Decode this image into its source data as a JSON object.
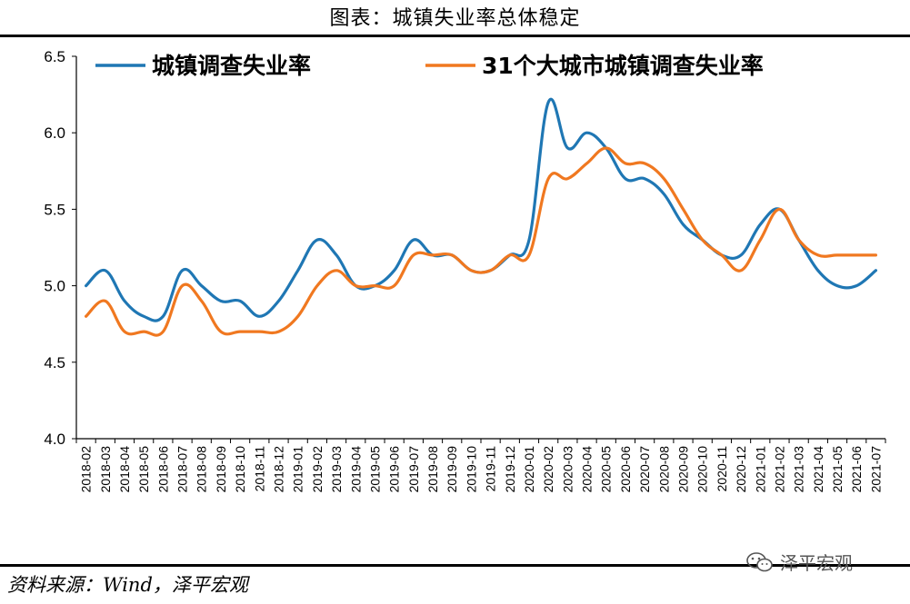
{
  "header": {
    "title": "图表：城镇失业率总体稳定"
  },
  "footer": {
    "source": "资料来源：Wind，泽平宏观",
    "watermark": "泽平宏观",
    "watermark_icon": "wechat-icon"
  },
  "colors": {
    "series1": "#1f77b4",
    "series2": "#f07820",
    "axis": "#000000"
  },
  "chart_data": {
    "type": "line",
    "title": "图表：城镇失业率总体稳定",
    "xlabel": "",
    "ylabel": "",
    "ylim": [
      4.0,
      6.5
    ],
    "yticks": [
      "4.0",
      "4.5",
      "5.0",
      "5.5",
      "6.0",
      "6.5"
    ],
    "grid": false,
    "legend_position": "top",
    "x": [
      "2018-02",
      "2018-03",
      "2018-04",
      "2018-05",
      "2018-06",
      "2018-07",
      "2018-08",
      "2018-09",
      "2018-10",
      "2018-11",
      "2018-12",
      "2019-01",
      "2019-02",
      "2019-03",
      "2019-04",
      "2019-05",
      "2019-06",
      "2019-07",
      "2019-08",
      "2019-09",
      "2019-10",
      "2019-11",
      "2019-12",
      "2020-01",
      "2020-02",
      "2020-03",
      "2020-04",
      "2020-05",
      "2020-06",
      "2020-07",
      "2020-08",
      "2020-09",
      "2020-10",
      "2020-11",
      "2020-12",
      "2021-01",
      "2021-02",
      "2021-03",
      "2021-04",
      "2021-05",
      "2021-06",
      "2021-07"
    ],
    "x_tick_labels": [
      "2018-02",
      "2018-03",
      "2018-04",
      "2018-05",
      "2018-06",
      "2018-07",
      "2018-08",
      "2018-09",
      "2018-10",
      "2018-11",
      "2018-12",
      "2019-01",
      "2019-02",
      "2019-03",
      "2019-04",
      "2019-05",
      "2019-06",
      "2019-07",
      "2019-08",
      "2019-09",
      "2019-10",
      "2019-11",
      "2019-12",
      "2020-01",
      "2020-02",
      "2020-03",
      "2020-04",
      "2020-05",
      "2020-06",
      "2020-07",
      "2020-08",
      "2020-09",
      "2020-10",
      "2020-11",
      "2020-12",
      "2021-01",
      "2021-02",
      "2021-03",
      "2021-04",
      "2021-05",
      "2021-06",
      "2021-07"
    ],
    "series": [
      {
        "name": "城镇调查失业率",
        "values": [
          5.0,
          5.1,
          4.9,
          4.8,
          4.8,
          5.1,
          5.0,
          4.9,
          4.9,
          4.8,
          4.9,
          5.1,
          5.3,
          5.2,
          5.0,
          5.0,
          5.1,
          5.3,
          5.2,
          5.2,
          5.1,
          5.1,
          5.2,
          5.3,
          6.2,
          5.9,
          6.0,
          5.9,
          5.7,
          5.7,
          5.6,
          5.4,
          5.3,
          5.2,
          5.2,
          5.4,
          5.5,
          5.3,
          5.1,
          5.0,
          5.0,
          5.1
        ]
      },
      {
        "name": "31个大城市城镇调查失业率",
        "values": [
          4.8,
          4.9,
          4.7,
          4.7,
          4.7,
          5.0,
          4.9,
          4.7,
          4.7,
          4.7,
          4.7,
          4.8,
          5.0,
          5.1,
          5.0,
          5.0,
          5.0,
          5.2,
          5.2,
          5.2,
          5.1,
          5.1,
          5.2,
          5.2,
          5.7,
          5.7,
          5.8,
          5.9,
          5.8,
          5.8,
          5.7,
          5.5,
          5.3,
          5.2,
          5.1,
          5.3,
          5.5,
          5.3,
          5.2,
          5.2,
          5.2,
          5.2
        ]
      }
    ]
  }
}
